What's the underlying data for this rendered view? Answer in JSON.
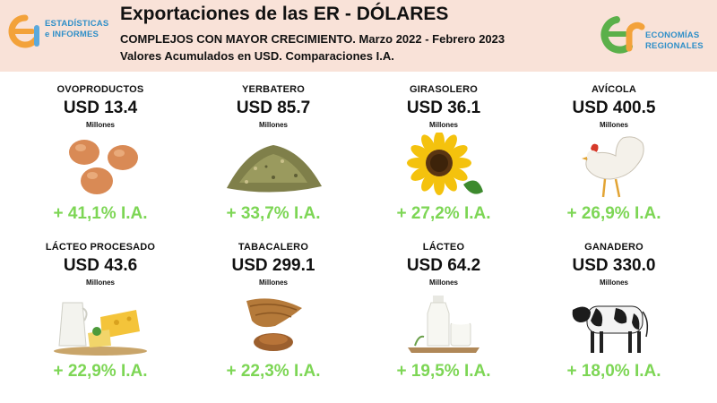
{
  "header": {
    "title": "Exportaciones de las ER - DÓLARES",
    "subtitle": "COMPLEJOS CON MAYOR CRECIMIENTO. Marzo 2022 - Febrero 2023",
    "subtitle2": "Valores Acumulados en USD. Comparaciones I.A.",
    "left_logo": {
      "line1": "ESTADÍSTICAS",
      "line2": "e INFORMES",
      "icon": "ei-logo-icon"
    },
    "right_logo": {
      "line1": "ECONOMÍAS",
      "line2": "REGIONALES",
      "icon": "er-logo-icon"
    }
  },
  "colors": {
    "growth": "#7dd655",
    "header_bg": "#f9e2d8",
    "brand_blue": "#2f8fc8",
    "brand_orange": "#f3a23a",
    "brand_green": "#5bb04a"
  },
  "cards": [
    {
      "name": "OVOPRODUCTOS",
      "value": "USD 13.4",
      "unit": "Millones",
      "growth": "+ 41,1% I.A.",
      "icon": "eggs-icon"
    },
    {
      "name": "YERBATERO",
      "value": "USD 85.7",
      "unit": "Millones",
      "growth": "+ 33,7% I.A.",
      "icon": "yerba-mate-icon"
    },
    {
      "name": "GIRASOLERO",
      "value": "USD 36.1",
      "unit": "Millones",
      "growth": "+ 27,2% I.A.",
      "icon": "sunflower-icon"
    },
    {
      "name": "AVÍCOLA",
      "value": "USD 400.5",
      "unit": "Millones",
      "growth": "+ 26,9% I.A.",
      "icon": "chicken-icon"
    },
    {
      "name": "LÁCTEO PROCESADO",
      "value": "USD 43.6",
      "unit": "Millones",
      "growth": "+ 22,9% I.A.",
      "icon": "cheese-milk-icon"
    },
    {
      "name": "TABACALERO",
      "value": "USD 299.1",
      "unit": "Millones",
      "growth": "+ 22,3% I.A.",
      "icon": "tobacco-icon"
    },
    {
      "name": "LÁCTEO",
      "value": "USD 64.2",
      "unit": "Millones",
      "growth": "+ 19,5% I.A.",
      "icon": "milk-icon"
    },
    {
      "name": "GANADERO",
      "value": "USD 330.0",
      "unit": "Millones",
      "growth": "+ 18,0% I.A.",
      "icon": "cow-icon"
    }
  ]
}
